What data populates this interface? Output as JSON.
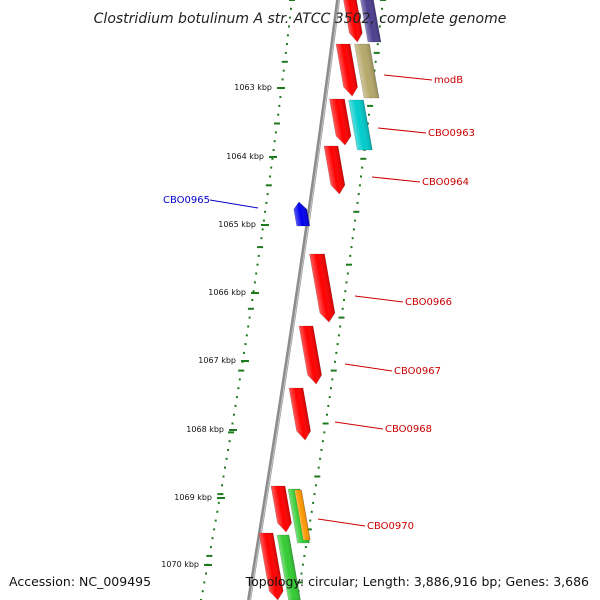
{
  "title": "Clostridium botulinum A str. ATCC 3502, complete genome",
  "footer": {
    "accession": "Accession: NC_009495",
    "topology": "Topology: circular; Length: 3,886,916 bp; Genes: 3,686"
  },
  "colors": {
    "backbone": "#8c8c8c",
    "tick": "#1f7a1f",
    "forward_label": "#cc0000",
    "reverse_label": "#0000cc"
  },
  "scale_marks": [
    "1063 kbp",
    "1064 kbp",
    "1065 kbp",
    "1066 kbp",
    "1067 kbp",
    "1068 kbp",
    "1069 kbp",
    "1070 kbp"
  ],
  "gene_labels": [
    {
      "name": "CBO0965",
      "strand": "reverse"
    },
    {
      "name": "modB",
      "strand": "forward"
    },
    {
      "name": "CBO0963",
      "strand": "forward"
    },
    {
      "name": "CBO0964",
      "strand": "forward"
    },
    {
      "name": "CBO0966",
      "strand": "forward"
    },
    {
      "name": "CBO0967",
      "strand": "forward"
    },
    {
      "name": "CBO0968",
      "strand": "forward"
    },
    {
      "name": "CBO0970",
      "strand": "forward"
    }
  ],
  "features": [
    {
      "gene": "",
      "track": "cds",
      "color": "#ff0000"
    },
    {
      "gene": "",
      "track": "ann",
      "color": "#4b3f8f"
    },
    {
      "gene": "modB",
      "track": "cds",
      "color": "#ff0000"
    },
    {
      "gene": "modB",
      "track": "ann",
      "color": "#b5a86a"
    },
    {
      "gene": "CBO0963",
      "track": "cds",
      "color": "#ff0000"
    },
    {
      "gene": "CBO0963",
      "track": "ann",
      "color": "#00cccc"
    },
    {
      "gene": "CBO0964",
      "track": "cds",
      "color": "#ff0000"
    },
    {
      "gene": "CBO0965",
      "track": "rev",
      "color": "#0000ee"
    },
    {
      "gene": "CBO0966",
      "track": "cds",
      "color": "#ff0000"
    },
    {
      "gene": "CBO0967",
      "track": "cds",
      "color": "#ff0000"
    },
    {
      "gene": "CBO0968",
      "track": "cds",
      "color": "#ff0000"
    },
    {
      "gene": "",
      "track": "cds",
      "color": "#ff0000"
    },
    {
      "gene": "",
      "track": "ann",
      "color": "#33cc33"
    },
    {
      "gene": "CBO0970",
      "track": "ann",
      "color": "#ff9900"
    },
    {
      "gene": "",
      "track": "cds",
      "color": "#ff0000"
    },
    {
      "gene": "",
      "track": "ann",
      "color": "#33cc33"
    }
  ]
}
